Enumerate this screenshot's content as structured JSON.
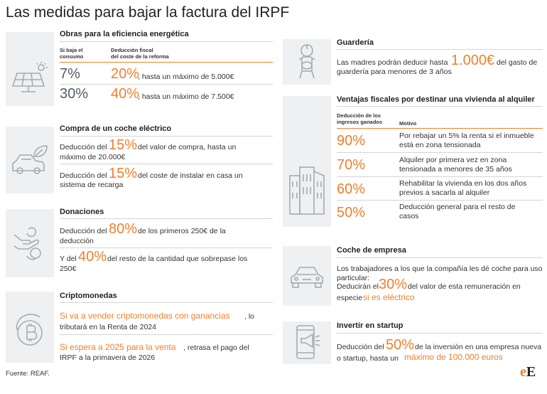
{
  "title": "Las medidas para bajar la factura del IRPF",
  "colors": {
    "accent": "#f07f2c",
    "icon_bg": "#eef0f2",
    "icon_stroke": "#a6abb2"
  },
  "obras": {
    "title": "Obras para la eficiencia energética",
    "col1": [
      "Si baja el",
      "consumo"
    ],
    "col2": [
      "Deducción fiscal",
      "del coste de la reforma"
    ],
    "rows": [
      {
        "consumo": "7%",
        "deduccion": "20%",
        "text": ", hasta un máximo de 5.000€"
      },
      {
        "consumo": "30%",
        "deduccion": "40%",
        "text": ", hasta un máximo de 7.500€"
      }
    ],
    "icon": "solar-panel-icon"
  },
  "coche": {
    "title": "Compra de un coche eléctrico",
    "item1": {
      "pre": "Deducción del ",
      "pct": "15%",
      "post": " del valor de compra, hasta un",
      "line2": "máximo de 20.000€"
    },
    "item2": {
      "pre": "Deducción del ",
      "pct": "15%",
      "post": " del coste de instalar en casa un",
      "line2": "sistema de recarga"
    },
    "icon": "electric-car-icon"
  },
  "donaciones": {
    "title": "Donaciones",
    "item1": {
      "pre": "Deducción del ",
      "pct": "80%",
      "post": " de los primeros   250€ de la",
      "line2": "deducción"
    },
    "item2": {
      "pre": "Y del ",
      "pct": "40%",
      "post": " del resto de la cantidad que sobrepase los",
      "line2": "250€"
    },
    "icon": "donation-hand-icon"
  },
  "cripto": {
    "title": "Criptomonedas",
    "item1": {
      "hl": "Si va a vender criptomonedas con ganancias",
      "post": ", lo",
      "line2": "tributará en la Renta de 2024"
    },
    "item2": {
      "hl": "Si espera a 2025 para la venta",
      "post": ", retrasa el pago del",
      "line2": "IRPF a la primavera de 2026"
    },
    "icon": "bitcoin-icon"
  },
  "guarderia": {
    "title": "Guardería",
    "pre": "Las madres podrán deducir hasta ",
    "amount": "1.000€",
    "post": " del gasto de",
    "line2": "guardería para menores de 3 años",
    "icon": "baby-icon"
  },
  "vivienda": {
    "title": "Ventajas fiscales por destinar una vivienda al alquiler",
    "col1": [
      "Deducción de los",
      "ingresos ganados"
    ],
    "col2": "Motivo",
    "rows": [
      {
        "pct": "90%",
        "line1": "Por rebajar un 5% la renta si el inmueble",
        "line2": "está en zona tensionada"
      },
      {
        "pct": "70%",
        "line1": "Alquiler por primera vez en zona",
        "line2": "tensionada a menores de 35 años"
      },
      {
        "pct": "60%",
        "line1": "Rehabilitar la vivienda en los dos años",
        "line2": "previos a sacarla al alquiler"
      },
      {
        "pct": "50%",
        "line1": "Deducción general para el resto de",
        "line2": "casos"
      }
    ],
    "icon": "buildings-icon"
  },
  "empresa": {
    "title": "Coche de empresa",
    "line1": "Los trabajadores a los que la compañía les dé coche para uso",
    "line2": "particular:",
    "pre": "Deducirán el ",
    "pct": "30%",
    "post": " del valor de esta remuneración en",
    "line4pre": "especie ",
    "line4hl": "si es eléctrico",
    "icon": "car-icon"
  },
  "startup": {
    "title": "Invertir en startup",
    "pre": "Deducción del ",
    "pct": "50%",
    "post": " de la inversión en una empresa nueva",
    "line2pre": "o startup, hasta un ",
    "line2hl": "máximo de 100.000 euros",
    "icon": "mobile-megaphone-icon"
  },
  "footer": {
    "source": "Fuente: REAF.",
    "logo_e1": "e",
    "logo_e2": "E"
  }
}
